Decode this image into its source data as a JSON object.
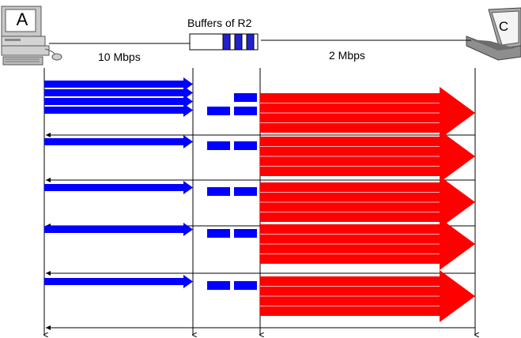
{
  "nodes": {
    "a": {
      "label": "A",
      "icon": "desktop-computer-icon"
    },
    "c": {
      "label": "C",
      "icon": "laptop-computer-icon"
    }
  },
  "router": {
    "label": "Buffers of R2",
    "buffered_packets": 3
  },
  "links": {
    "a_r2": {
      "label": "10 Mbps"
    },
    "r2_c": {
      "label": "2 Mbps"
    }
  },
  "colors": {
    "incoming_packets": "#0000ff",
    "queued_packets": "#0000ff",
    "outgoing_flow": "#ff0000",
    "timeline": "#000000",
    "background": "#ffffff"
  },
  "rounds": [
    {
      "incoming_arrows": 4,
      "queued_top_row": 1,
      "queued_bottom_row": 2,
      "outgoing_stripes": 4,
      "ack_returned": true
    },
    {
      "incoming_arrows": 1,
      "queued_top_row": 0,
      "queued_bottom_row": 2,
      "outgoing_stripes": 4,
      "ack_returned": true
    },
    {
      "incoming_arrows": 1,
      "queued_top_row": 0,
      "queued_bottom_row": 2,
      "outgoing_stripes": 4,
      "ack_returned": true
    },
    {
      "incoming_arrows": 1,
      "queued_top_row": 0,
      "queued_bottom_row": 2,
      "outgoing_stripes": 4,
      "ack_returned": true
    },
    {
      "incoming_arrows": 1,
      "queued_top_row": 0,
      "queued_bottom_row": 2,
      "outgoing_stripes": 4,
      "ack_returned": true
    }
  ]
}
